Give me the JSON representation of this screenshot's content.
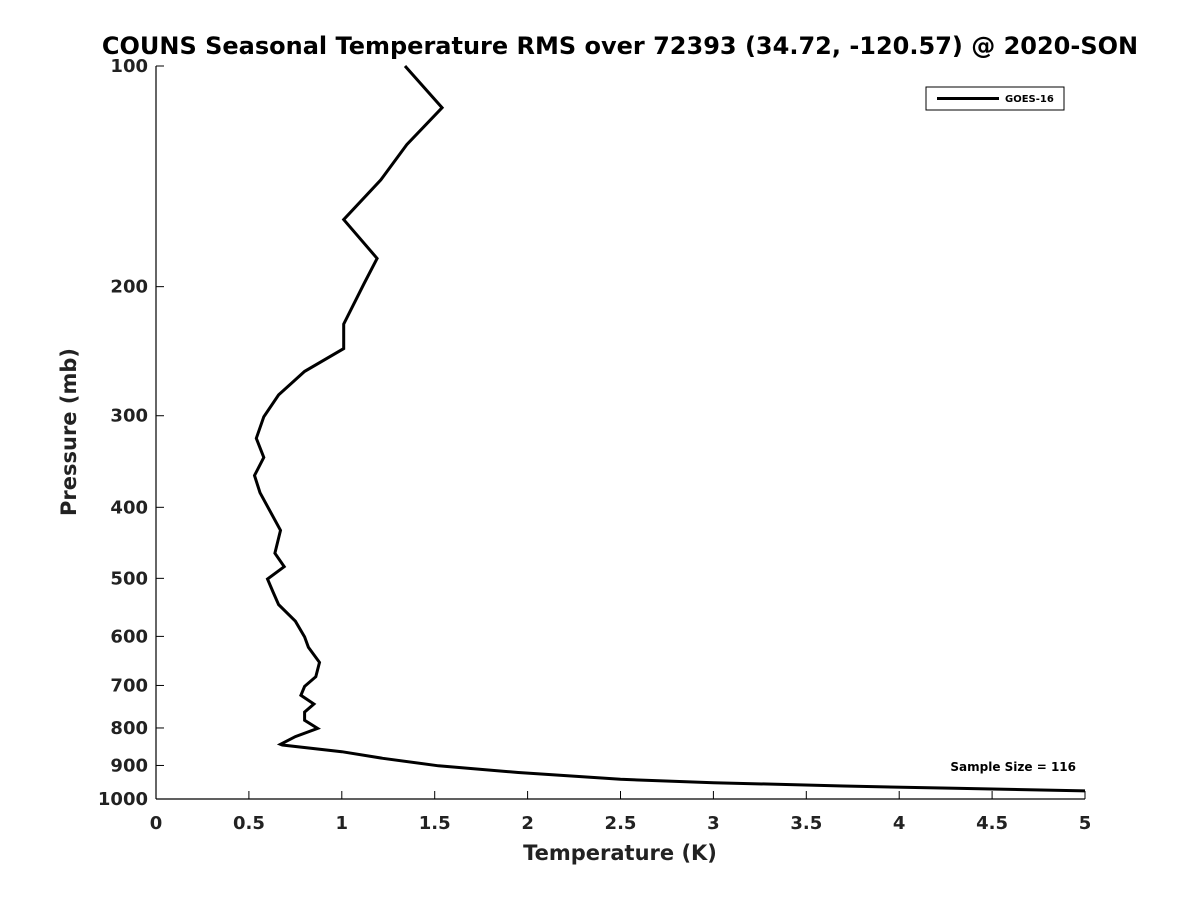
{
  "chart_data": {
    "type": "line",
    "title": "COUNS Seasonal Temperature RMS over 72393 (34.72, -120.57) @ 2020-SON",
    "xlabel": "Temperature (K)",
    "ylabel": "Pressure (mb)",
    "xlim": [
      0,
      5
    ],
    "ylim": [
      100,
      1000
    ],
    "y_scale": "log",
    "y_reversed": true,
    "grid": false,
    "legend_position": "top-right",
    "x_ticks": [
      "0",
      "0.5",
      "1",
      "1.5",
      "2",
      "2.5",
      "3",
      "3.5",
      "4",
      "4.5",
      "5"
    ],
    "y_ticks": [
      "100",
      "200",
      "300",
      "400",
      "500",
      "600",
      "700",
      "800",
      "900",
      "1000"
    ],
    "annotation": "Sample Size = 116",
    "series": [
      {
        "name": "GOES-16",
        "color": "#000000",
        "x": [
          1.34,
          1.54,
          1.35,
          1.21,
          1.01,
          1.19,
          1.12,
          1.01,
          1.01,
          0.8,
          0.66,
          0.58,
          0.54,
          0.58,
          0.53,
          0.56,
          0.67,
          0.64,
          0.69,
          0.6,
          0.63,
          0.66,
          0.75,
          0.8,
          0.82,
          0.88,
          0.86,
          0.8,
          0.78,
          0.85,
          0.8,
          0.8,
          0.87,
          0.75,
          0.67,
          0.68,
          1.0,
          1.22,
          1.52,
          1.95,
          2.5,
          3.0,
          3.7,
          4.3,
          5.0
        ],
        "y": [
          100,
          114,
          128,
          143,
          162,
          183,
          198,
          225,
          243,
          261,
          281,
          301,
          322,
          342,
          362,
          382,
          430,
          462,
          482,
          501,
          522,
          543,
          572,
          601,
          621,
          651,
          681,
          702,
          722,
          742,
          761,
          781,
          801,
          822,
          842,
          844,
          862,
          880,
          901,
          920,
          940,
          950,
          960,
          967,
          975
        ]
      }
    ]
  }
}
